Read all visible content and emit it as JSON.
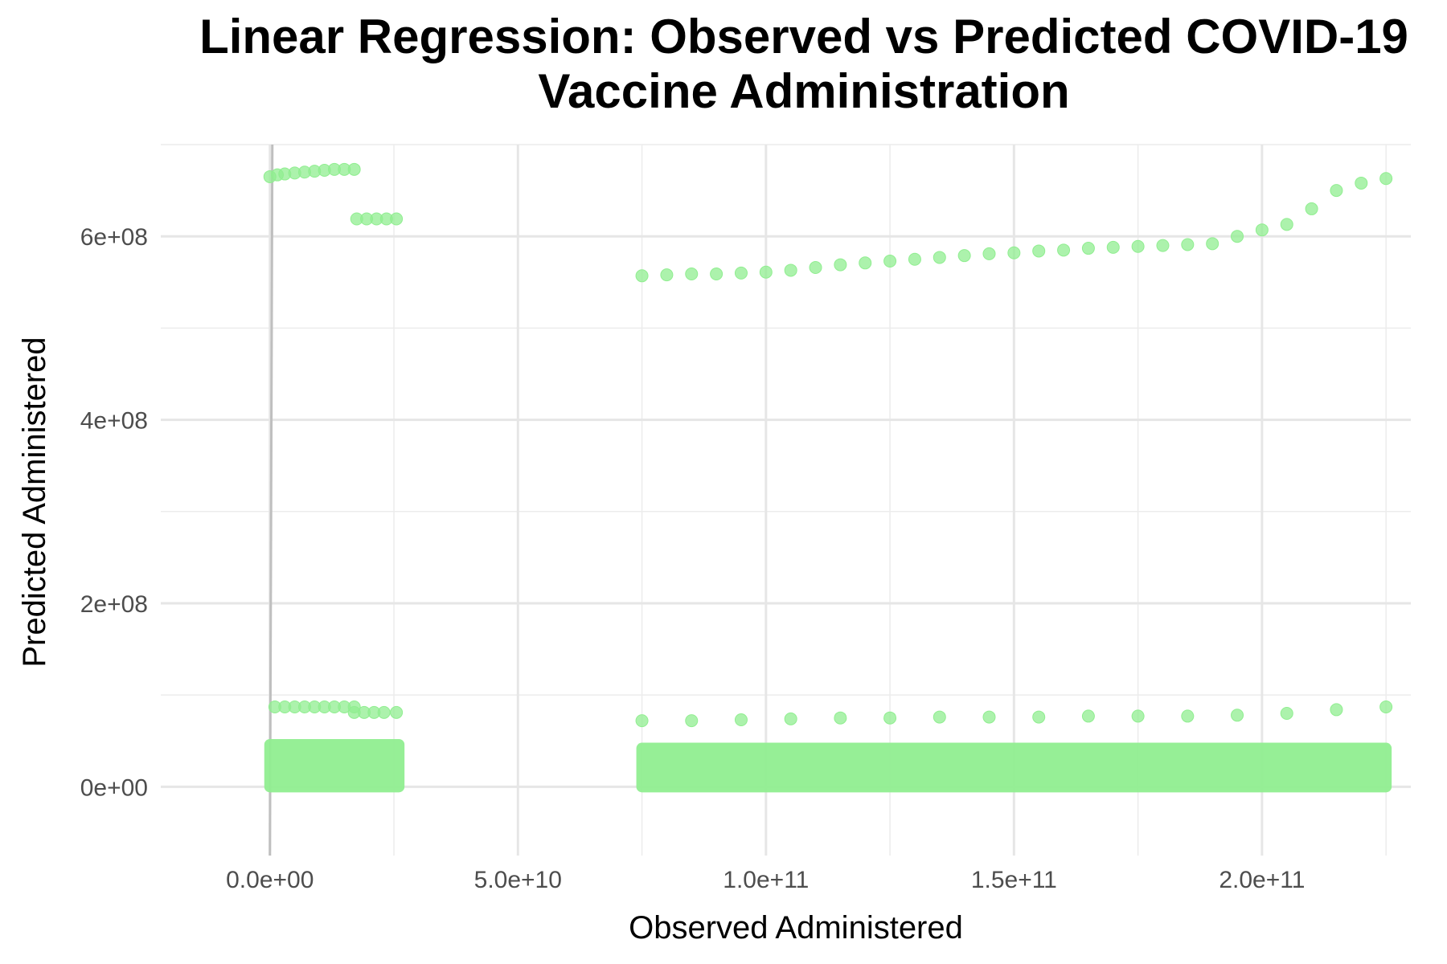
{
  "chart_data": {
    "type": "scatter",
    "title_lines": [
      "Linear Regression: Observed vs Predicted COVID-19",
      "Vaccine Administration"
    ],
    "xlabel": "Observed Administered",
    "ylabel": "Predicted Administered",
    "xlim": [
      -22000000000.0,
      230000000000.0
    ],
    "ylim": [
      -75000000.0,
      700000000.0
    ],
    "x_ticks": [
      0,
      50000000000.0,
      100000000000.0,
      150000000000.0,
      200000000000.0
    ],
    "x_tick_labels": [
      "0.0e+00",
      "5.0e+10",
      "1.0e+11",
      "1.5e+11",
      "2.0e+11"
    ],
    "y_ticks": [
      0,
      200000000.0,
      400000000.0,
      600000000.0
    ],
    "y_tick_labels": [
      "0e+00",
      "2e+08",
      "4e+08",
      "6e+08"
    ],
    "grid": true,
    "legend": "none",
    "point_color": "#90EE90",
    "reference_line": {
      "color": "#bfbfbf",
      "x": [
        0,
        0
      ],
      "y": [
        -75000000.0,
        700000000.0
      ]
    },
    "series": [
      {
        "x": [
          0,
          1500000000.0,
          3000000000.0,
          5000000000.0,
          7000000000.0,
          9000000000.0,
          11000000000.0,
          13000000000.0,
          15000000000.0,
          17000000000.0
        ],
        "y": [
          665000000.0,
          667000000.0,
          668000000.0,
          669000000.0,
          670000000.0,
          671000000.0,
          672000000.0,
          673000000.0,
          673000000.0,
          673000000.0
        ]
      },
      {
        "x": [
          17500000000.0,
          19500000000.0,
          21500000000.0,
          23500000000.0,
          25500000000.0
        ],
        "y": [
          619000000.0,
          619000000.0,
          619000000.0,
          619000000.0,
          619000000.0
        ]
      },
      {
        "x": [
          75000000000.0,
          80000000000.0,
          85000000000.0,
          90000000000.0,
          95000000000.0,
          100000000000.0,
          105000000000.0,
          110000000000.0,
          115000000000.0,
          120000000000.0,
          125000000000.0,
          130000000000.0,
          135000000000.0,
          140000000000.0,
          145000000000.0,
          150000000000.0,
          155000000000.0,
          160000000000.0,
          165000000000.0,
          170000000000.0,
          175000000000.0,
          180000000000.0,
          185000000000.0,
          190000000000.0,
          195000000000.0,
          200000000000.0,
          205000000000.0,
          210000000000.0,
          215000000000.0,
          220000000000.0,
          225000000000.0
        ],
        "y": [
          557000000.0,
          558000000.0,
          559000000.0,
          559000000.0,
          560000000.0,
          561000000.0,
          563000000.0,
          566000000.0,
          569000000.0,
          571000000.0,
          573000000.0,
          575000000.0,
          577000000.0,
          579000000.0,
          581000000.0,
          582000000.0,
          584000000.0,
          585000000.0,
          587000000.0,
          588000000.0,
          589000000.0,
          590000000.0,
          591000000.0,
          592000000.0,
          600000000.0,
          607000000.0,
          613000000.0,
          630000000.0,
          650000000.0,
          658000000.0,
          663000000.0
        ]
      },
      {
        "x": [
          1000000000.0,
          3000000000.0,
          5000000000.0,
          7000000000.0,
          9000000000.0,
          11000000000.0,
          13000000000.0,
          15000000000.0,
          17000000000.0
        ],
        "y": [
          87000000.0,
          87000000.0,
          87000000.0,
          87000000.0,
          87000000.0,
          87000000.0,
          87000000.0,
          87000000.0,
          87000000.0
        ]
      },
      {
        "x": [
          17000000000.0,
          19000000000.0,
          21000000000.0,
          23000000000.0,
          25500000000.0
        ],
        "y": [
          81000000.0,
          81000000.0,
          81000000.0,
          81000000.0,
          81000000.0
        ]
      },
      {
        "x": [
          75000000000.0,
          85000000000.0,
          95000000000.0,
          105000000000.0,
          115000000000.0,
          125000000000.0,
          135000000000.0,
          145000000000.0,
          155000000000.0,
          165000000000.0,
          175000000000.0,
          185000000000.0,
          195000000000.0,
          205000000000.0,
          215000000000.0,
          225000000000.0
        ],
        "y": [
          72000000.0,
          72000000.0,
          73000000.0,
          74000000.0,
          75000000.0,
          75000000.0,
          76000000.0,
          76000000.0,
          76000000.0,
          77000000.0,
          77000000.0,
          77000000.0,
          78000000.0,
          80000000.0,
          84000000.0,
          87000000.0
        ]
      }
    ],
    "dense_bands": [
      {
        "x_range": [
          0,
          26000000000.0
        ],
        "y_range": [
          0,
          52000000.0
        ]
      },
      {
        "x_range": [
          75000000000.0,
          225000000000.0
        ],
        "y_range": [
          0,
          48000000.0
        ]
      }
    ]
  }
}
